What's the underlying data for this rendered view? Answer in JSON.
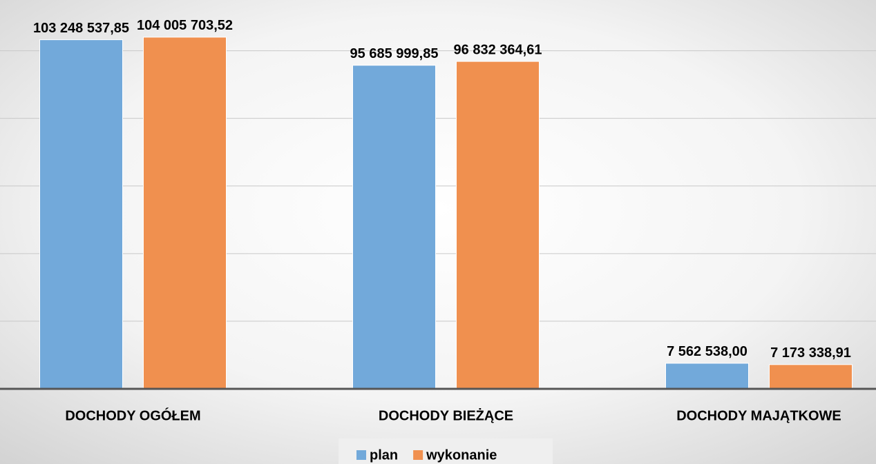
{
  "chart_data": {
    "type": "bar",
    "categories": [
      "DOCHODY OGÓŁEM",
      "DOCHODY BIEŻĄCE",
      "DOCHODY MAJĄTKOWE"
    ],
    "series": [
      {
        "name": "plan",
        "color": "#72a9da",
        "values": [
          103248537.85,
          95685999.85,
          7562538.0
        ],
        "value_labels": [
          "103 248 537,85",
          "95 685 999,85",
          "7 562 538,00"
        ]
      },
      {
        "name": "wykonanie",
        "color": "#f0904f",
        "values": [
          104005703.52,
          96832364.61,
          7173338.91
        ],
        "value_labels": [
          "104 005 703,52",
          "96 832 364,61",
          "7 173 338,91"
        ]
      }
    ],
    "ylim": [
      0,
      115000000
    ],
    "yticks": [
      0,
      20000000,
      40000000,
      60000000,
      80000000,
      100000000
    ],
    "grid": true
  }
}
